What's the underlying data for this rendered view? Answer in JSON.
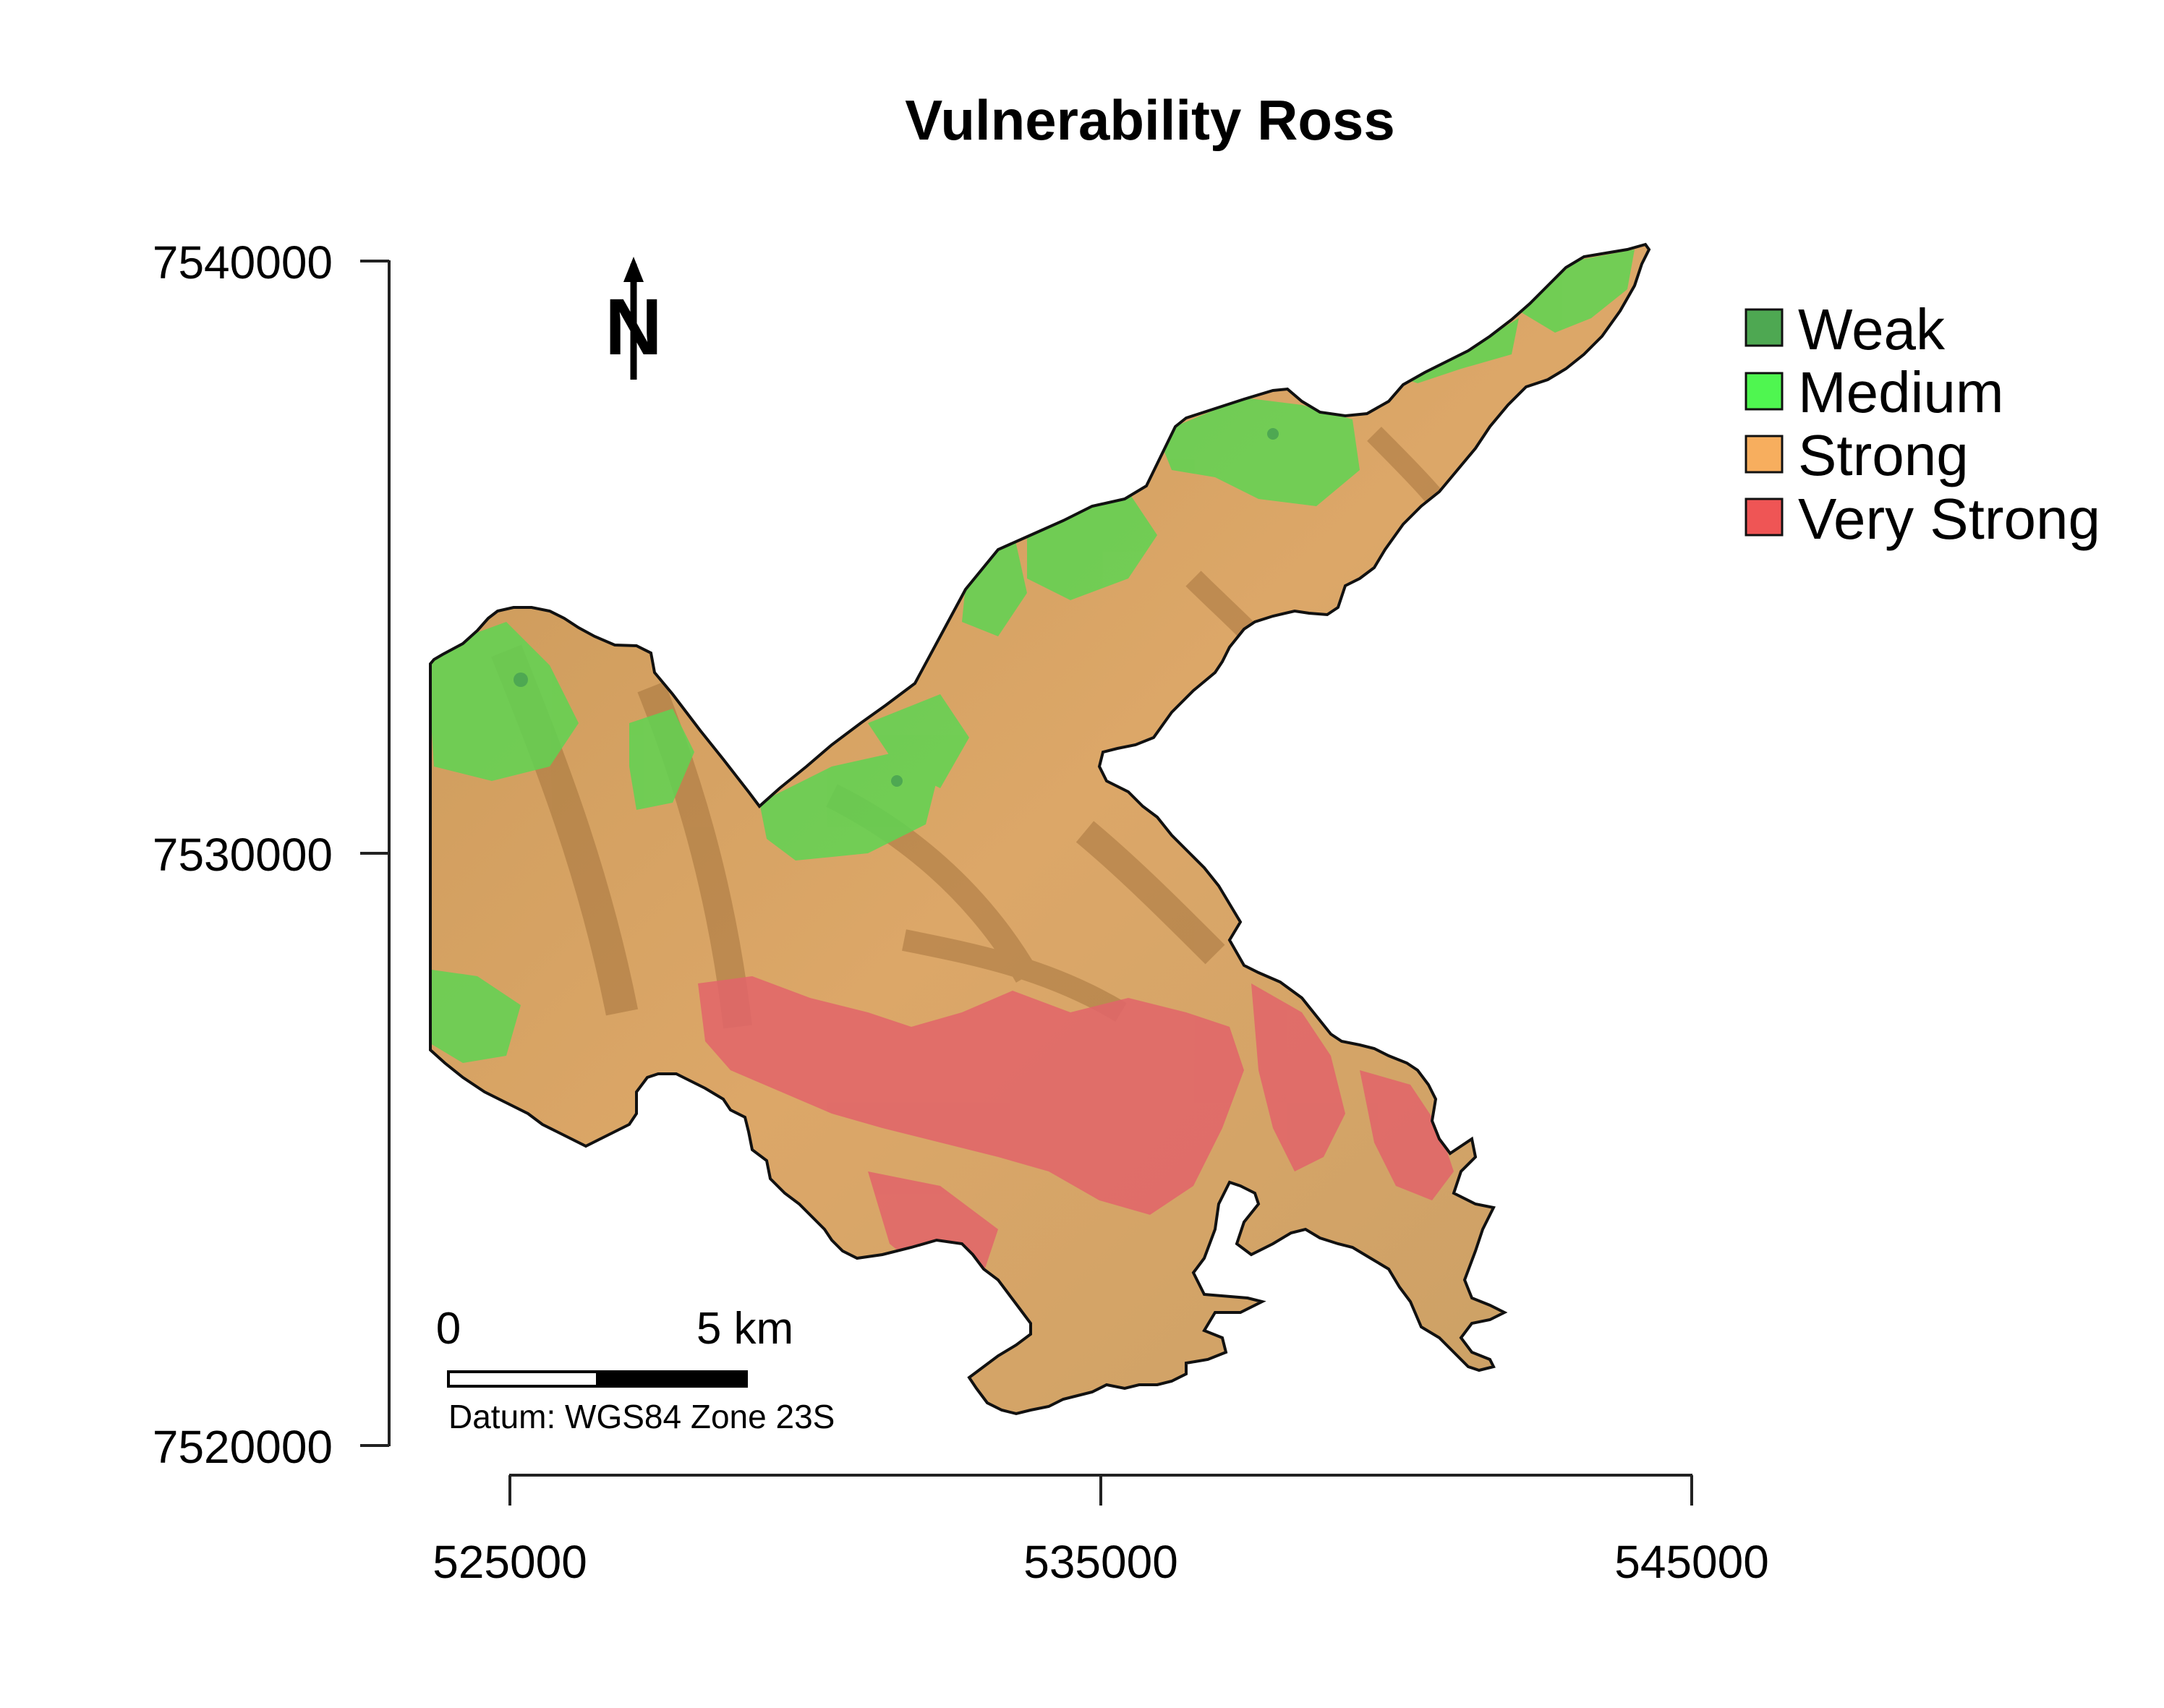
{
  "map": {
    "title": "Vulnerability Ross",
    "y_ticks": [
      "7540000",
      "7530000",
      "7520000"
    ],
    "x_ticks": [
      "525000",
      "535000",
      "545000"
    ],
    "north_arrow_label": "N",
    "north_arrow_icon": "north-arrow-icon",
    "scale_bar": {
      "start_label": "0",
      "end_label": "5 km"
    },
    "datum_text": "Datum: WGS84 Zone 23S",
    "legend": [
      {
        "label": "Weak",
        "color": "#4ea852"
      },
      {
        "label": "Medium",
        "color": "#4ff650"
      },
      {
        "label": "Strong",
        "color": "#f7ae5e"
      },
      {
        "label": "Very Strong",
        "color": "#ef5555"
      }
    ],
    "terrain_colors": {
      "strong_shaded": "#d9a164",
      "medium_shaded": "#5fd452",
      "very_strong_shaded": "#e2646a"
    }
  }
}
